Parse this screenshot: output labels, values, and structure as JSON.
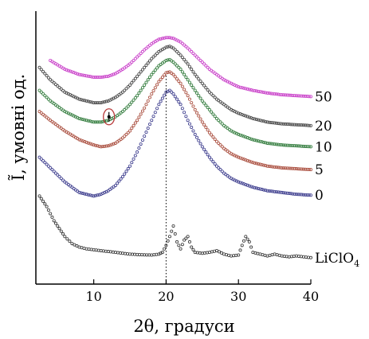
{
  "chart_data": {
    "type": "scatter",
    "title": "",
    "xlabel": "2θ, градуси",
    "ylabel": "Ĩ, умовні од.",
    "xlim": [
      2,
      40
    ],
    "x_ticks": [
      10,
      20,
      30,
      40
    ],
    "x_tick_labels": [
      "10",
      "20",
      "30",
      "40"
    ],
    "reference_line_x": 20,
    "y_axis_numeric": false,
    "grid": false,
    "legend": "none",
    "series": [
      {
        "name": "LiClO",
        "name_subscript": "4",
        "color": "#333333",
        "points": [
          [
            2.5,
            0.5
          ],
          [
            3,
            0.47
          ],
          [
            3.5,
            0.44
          ],
          [
            4,
            0.4
          ],
          [
            4.5,
            0.36
          ],
          [
            5,
            0.33
          ],
          [
            5.5,
            0.3
          ],
          [
            6,
            0.27
          ],
          [
            7,
            0.23
          ],
          [
            8,
            0.21
          ],
          [
            9,
            0.2
          ],
          [
            10,
            0.195
          ],
          [
            11,
            0.19
          ],
          [
            12,
            0.185
          ],
          [
            13,
            0.18
          ],
          [
            14,
            0.175
          ],
          [
            15,
            0.17
          ],
          [
            16,
            0.168
          ],
          [
            17,
            0.166
          ],
          [
            18,
            0.165
          ],
          [
            19,
            0.17
          ],
          [
            19.5,
            0.18
          ],
          [
            20,
            0.22
          ],
          [
            20.5,
            0.27
          ],
          [
            21,
            0.33
          ],
          [
            21.5,
            0.24
          ],
          [
            22,
            0.2
          ],
          [
            22.5,
            0.25
          ],
          [
            23,
            0.27
          ],
          [
            23.5,
            0.21
          ],
          [
            24,
            0.18
          ],
          [
            25,
            0.175
          ],
          [
            26,
            0.18
          ],
          [
            27,
            0.19
          ],
          [
            28,
            0.17
          ],
          [
            29,
            0.16
          ],
          [
            30,
            0.165
          ],
          [
            30.5,
            0.22
          ],
          [
            31,
            0.27
          ],
          [
            31.5,
            0.24
          ],
          [
            32,
            0.18
          ],
          [
            33,
            0.17
          ],
          [
            34,
            0.16
          ],
          [
            35,
            0.17
          ],
          [
            36,
            0.16
          ],
          [
            37,
            0.155
          ],
          [
            38,
            0.16
          ],
          [
            39,
            0.155
          ],
          [
            40,
            0.15
          ]
        ]
      },
      {
        "name": "0",
        "color": "#3a3a8c",
        "points": [
          [
            2.5,
            0.72
          ],
          [
            4,
            0.66
          ],
          [
            6,
            0.58
          ],
          [
            8,
            0.52
          ],
          [
            10,
            0.5
          ],
          [
            11,
            0.51
          ],
          [
            12,
            0.53
          ],
          [
            13,
            0.56
          ],
          [
            14,
            0.61
          ],
          [
            15,
            0.67
          ],
          [
            16,
            0.75
          ],
          [
            17,
            0.84
          ],
          [
            18,
            0.93
          ],
          [
            19,
            1.02
          ],
          [
            20,
            1.09
          ],
          [
            20.5,
            1.1
          ],
          [
            21,
            1.08
          ],
          [
            22,
            1.02
          ],
          [
            23,
            0.93
          ],
          [
            24,
            0.85
          ],
          [
            25,
            0.78
          ],
          [
            26,
            0.72
          ],
          [
            27,
            0.67
          ],
          [
            28,
            0.63
          ],
          [
            29,
            0.6
          ],
          [
            30,
            0.58
          ],
          [
            32,
            0.55
          ],
          [
            34,
            0.53
          ],
          [
            36,
            0.52
          ],
          [
            38,
            0.51
          ],
          [
            40,
            0.505
          ]
        ]
      },
      {
        "name": "5",
        "color": "#a84a3a",
        "points": [
          [
            2.5,
            0.98
          ],
          [
            4,
            0.93
          ],
          [
            6,
            0.87
          ],
          [
            8,
            0.82
          ],
          [
            10,
            0.79
          ],
          [
            11,
            0.78
          ],
          [
            12,
            0.785
          ],
          [
            13,
            0.8
          ],
          [
            14,
            0.83
          ],
          [
            15,
            0.87
          ],
          [
            16,
            0.93
          ],
          [
            17,
            1.0
          ],
          [
            18,
            1.08
          ],
          [
            19,
            1.15
          ],
          [
            20,
            1.2
          ],
          [
            20.5,
            1.205
          ],
          [
            21,
            1.19
          ],
          [
            22,
            1.14
          ],
          [
            23,
            1.07
          ],
          [
            24,
            0.99
          ],
          [
            25,
            0.92
          ],
          [
            26,
            0.86
          ],
          [
            27,
            0.81
          ],
          [
            28,
            0.77
          ],
          [
            29,
            0.74
          ],
          [
            30,
            0.72
          ],
          [
            32,
            0.69
          ],
          [
            34,
            0.67
          ],
          [
            36,
            0.66
          ],
          [
            38,
            0.655
          ],
          [
            40,
            0.65
          ]
        ]
      },
      {
        "name": "10",
        "color": "#2f7a3a",
        "points": [
          [
            2.5,
            1.1
          ],
          [
            4,
            1.04
          ],
          [
            6,
            0.98
          ],
          [
            8,
            0.94
          ],
          [
            10,
            0.92
          ],
          [
            11,
            0.92
          ],
          [
            12,
            0.93
          ],
          [
            13,
            0.95
          ],
          [
            14,
            0.98
          ],
          [
            15,
            1.02
          ],
          [
            16,
            1.07
          ],
          [
            17,
            1.13
          ],
          [
            18,
            1.19
          ],
          [
            19,
            1.24
          ],
          [
            20,
            1.27
          ],
          [
            20.5,
            1.275
          ],
          [
            21,
            1.26
          ],
          [
            22,
            1.22
          ],
          [
            23,
            1.16
          ],
          [
            24,
            1.1
          ],
          [
            25,
            1.04
          ],
          [
            26,
            0.99
          ],
          [
            27,
            0.94
          ],
          [
            28,
            0.9
          ],
          [
            29,
            0.87
          ],
          [
            30,
            0.85
          ],
          [
            32,
            0.82
          ],
          [
            34,
            0.8
          ],
          [
            36,
            0.79
          ],
          [
            38,
            0.785
          ],
          [
            40,
            0.78
          ]
        ]
      },
      {
        "name": "20",
        "color": "#444444",
        "points": [
          [
            2.5,
            1.23
          ],
          [
            4,
            1.16
          ],
          [
            6,
            1.09
          ],
          [
            8,
            1.05
          ],
          [
            10,
            1.03
          ],
          [
            11,
            1.03
          ],
          [
            12,
            1.04
          ],
          [
            13,
            1.06
          ],
          [
            14,
            1.09
          ],
          [
            15,
            1.13
          ],
          [
            16,
            1.18
          ],
          [
            17,
            1.23
          ],
          [
            18,
            1.28
          ],
          [
            19,
            1.32
          ],
          [
            20,
            1.345
          ],
          [
            20.5,
            1.35
          ],
          [
            21,
            1.34
          ],
          [
            22,
            1.3
          ],
          [
            23,
            1.25
          ],
          [
            24,
            1.19
          ],
          [
            25,
            1.14
          ],
          [
            26,
            1.09
          ],
          [
            27,
            1.05
          ],
          [
            28,
            1.02
          ],
          [
            29,
            0.99
          ],
          [
            30,
            0.97
          ],
          [
            32,
            0.94
          ],
          [
            34,
            0.92
          ],
          [
            36,
            0.91
          ],
          [
            38,
            0.905
          ],
          [
            40,
            0.9
          ]
        ]
      },
      {
        "name": "50",
        "color": "#c83cc8",
        "points": [
          [
            4,
            1.27
          ],
          [
            6,
            1.22
          ],
          [
            8,
            1.19
          ],
          [
            10,
            1.175
          ],
          [
            11,
            1.175
          ],
          [
            12,
            1.18
          ],
          [
            13,
            1.195
          ],
          [
            14,
            1.22
          ],
          [
            15,
            1.25
          ],
          [
            16,
            1.29
          ],
          [
            17,
            1.33
          ],
          [
            18,
            1.365
          ],
          [
            19,
            1.39
          ],
          [
            20,
            1.4
          ],
          [
            20.5,
            1.4
          ],
          [
            21,
            1.395
          ],
          [
            22,
            1.375
          ],
          [
            23,
            1.34
          ],
          [
            24,
            1.3
          ],
          [
            25,
            1.26
          ],
          [
            26,
            1.22
          ],
          [
            27,
            1.19
          ],
          [
            28,
            1.16
          ],
          [
            29,
            1.14
          ],
          [
            30,
            1.12
          ],
          [
            32,
            1.1
          ],
          [
            34,
            1.085
          ],
          [
            36,
            1.075
          ],
          [
            38,
            1.07
          ],
          [
            40,
            1.065
          ]
        ]
      }
    ],
    "annotations": [
      {
        "type": "circle-marker",
        "x": 12.1,
        "y": 0.95,
        "color": "#b83a3a"
      }
    ]
  }
}
